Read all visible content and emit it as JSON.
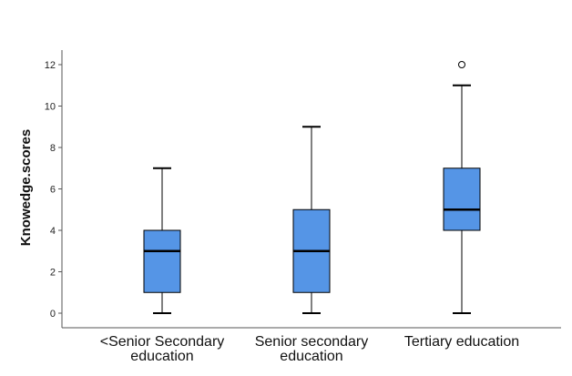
{
  "chart_data": {
    "type": "boxplot",
    "ylabel": "Knowedge.scores",
    "xlabel": "",
    "ylim": [
      0,
      12
    ],
    "yticks": [
      0,
      2,
      4,
      6,
      8,
      10,
      12
    ],
    "categories": [
      [
        "<Senior Secondary",
        "education"
      ],
      [
        "Senior secondary",
        "education"
      ],
      [
        "Tertiary education"
      ]
    ],
    "boxes": [
      {
        "whisker_low": 0,
        "q1": 1,
        "median": 3,
        "q3": 4,
        "whisker_high": 7,
        "outliers": []
      },
      {
        "whisker_low": 0,
        "q1": 1,
        "median": 3,
        "q3": 5,
        "whisker_high": 9,
        "outliers": []
      },
      {
        "whisker_low": 0,
        "q1": 4,
        "median": 5,
        "q3": 7,
        "whisker_high": 11,
        "outliers": [
          12
        ]
      }
    ],
    "box_color": "#5595e6",
    "grid": false
  }
}
